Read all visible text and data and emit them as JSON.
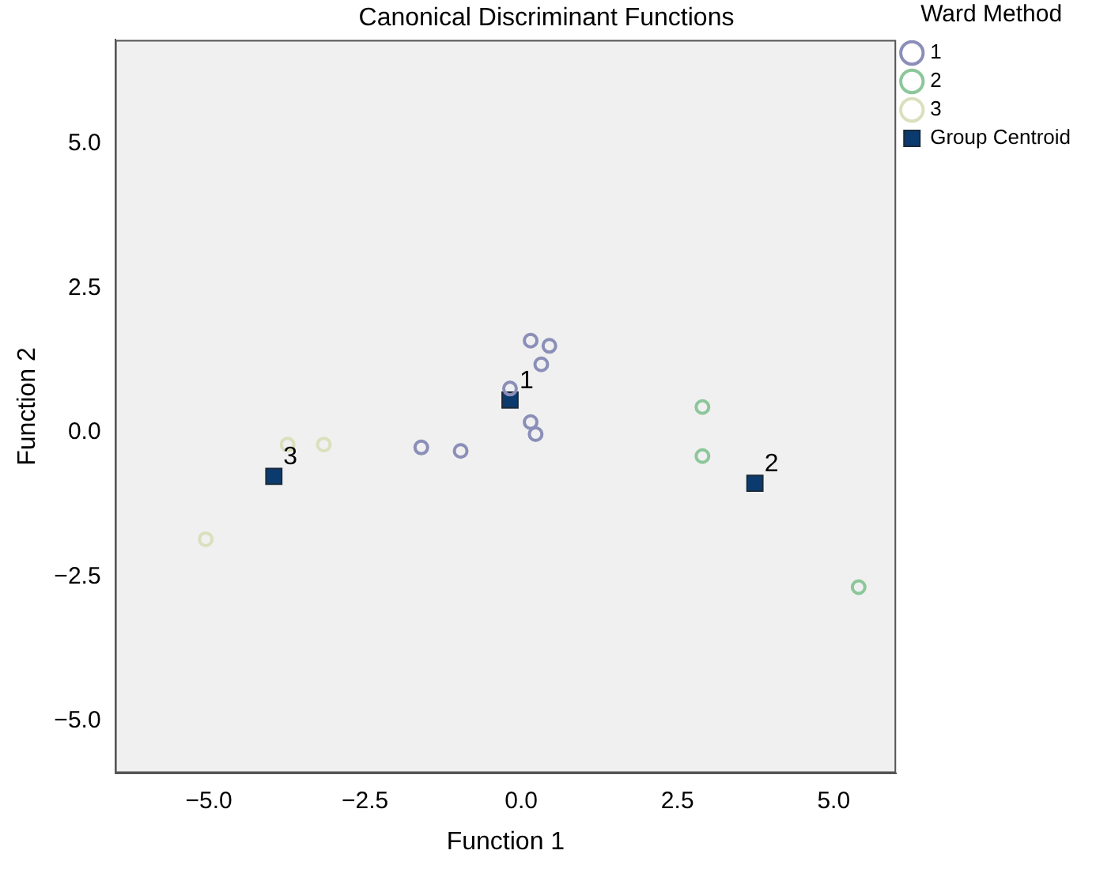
{
  "chart_data": {
    "type": "scatter",
    "title": "Canonical Discriminant Functions",
    "xlabel": "Function 1",
    "ylabel": "Function 2",
    "legend_title": "Ward Method",
    "legend": "top right",
    "grid": false,
    "xlim": [
      -6.5,
      6.0
    ],
    "ylim": [
      -5.9,
      6.8
    ],
    "xticks": [
      {
        "value": -5,
        "label": "−5.0"
      },
      {
        "value": -2.5,
        "label": "−2.5"
      },
      {
        "value": 0,
        "label": "0.0"
      },
      {
        "value": 2.5,
        "label": "2.5"
      },
      {
        "value": 5,
        "label": "5.0"
      }
    ],
    "yticks": [
      {
        "value": -5,
        "label": "−5.0"
      },
      {
        "value": -2.5,
        "label": "−2.5"
      },
      {
        "value": 0,
        "label": "0.0"
      },
      {
        "value": 2.5,
        "label": "2.5"
      },
      {
        "value": 5,
        "label": "5.0"
      }
    ],
    "series": [
      {
        "name": "1",
        "color": "#8b8fb8",
        "marker": "circle",
        "x": [
          0.15,
          0.45,
          0.32,
          -0.18,
          0.15,
          0.23,
          -1.6,
          -0.97
        ],
        "values": [
          1.59,
          1.5,
          1.18,
          0.76,
          0.18,
          -0.03,
          -0.26,
          -0.32
        ]
      },
      {
        "name": "2",
        "color": "#8cc79a",
        "marker": "circle",
        "x": [
          2.9,
          2.9,
          5.4
        ],
        "values": [
          0.44,
          -0.41,
          -2.68
        ]
      },
      {
        "name": "3",
        "color": "#dcdfbd",
        "marker": "circle",
        "x": [
          -3.74,
          -3.16,
          -5.05
        ],
        "values": [
          -0.21,
          -0.21,
          -1.85
        ]
      },
      {
        "name": "Group Centroid",
        "color": "#0b3a6e",
        "marker": "square",
        "x": [
          -0.18,
          3.74,
          -3.96
        ],
        "values": [
          0.56,
          -0.88,
          -0.76
        ]
      }
    ],
    "annotations": [
      {
        "text": "1",
        "x": -0.18,
        "y": 0.56
      },
      {
        "text": "2",
        "x": 3.74,
        "y": -0.88
      },
      {
        "text": "3",
        "x": -3.96,
        "y": -0.76
      }
    ]
  }
}
